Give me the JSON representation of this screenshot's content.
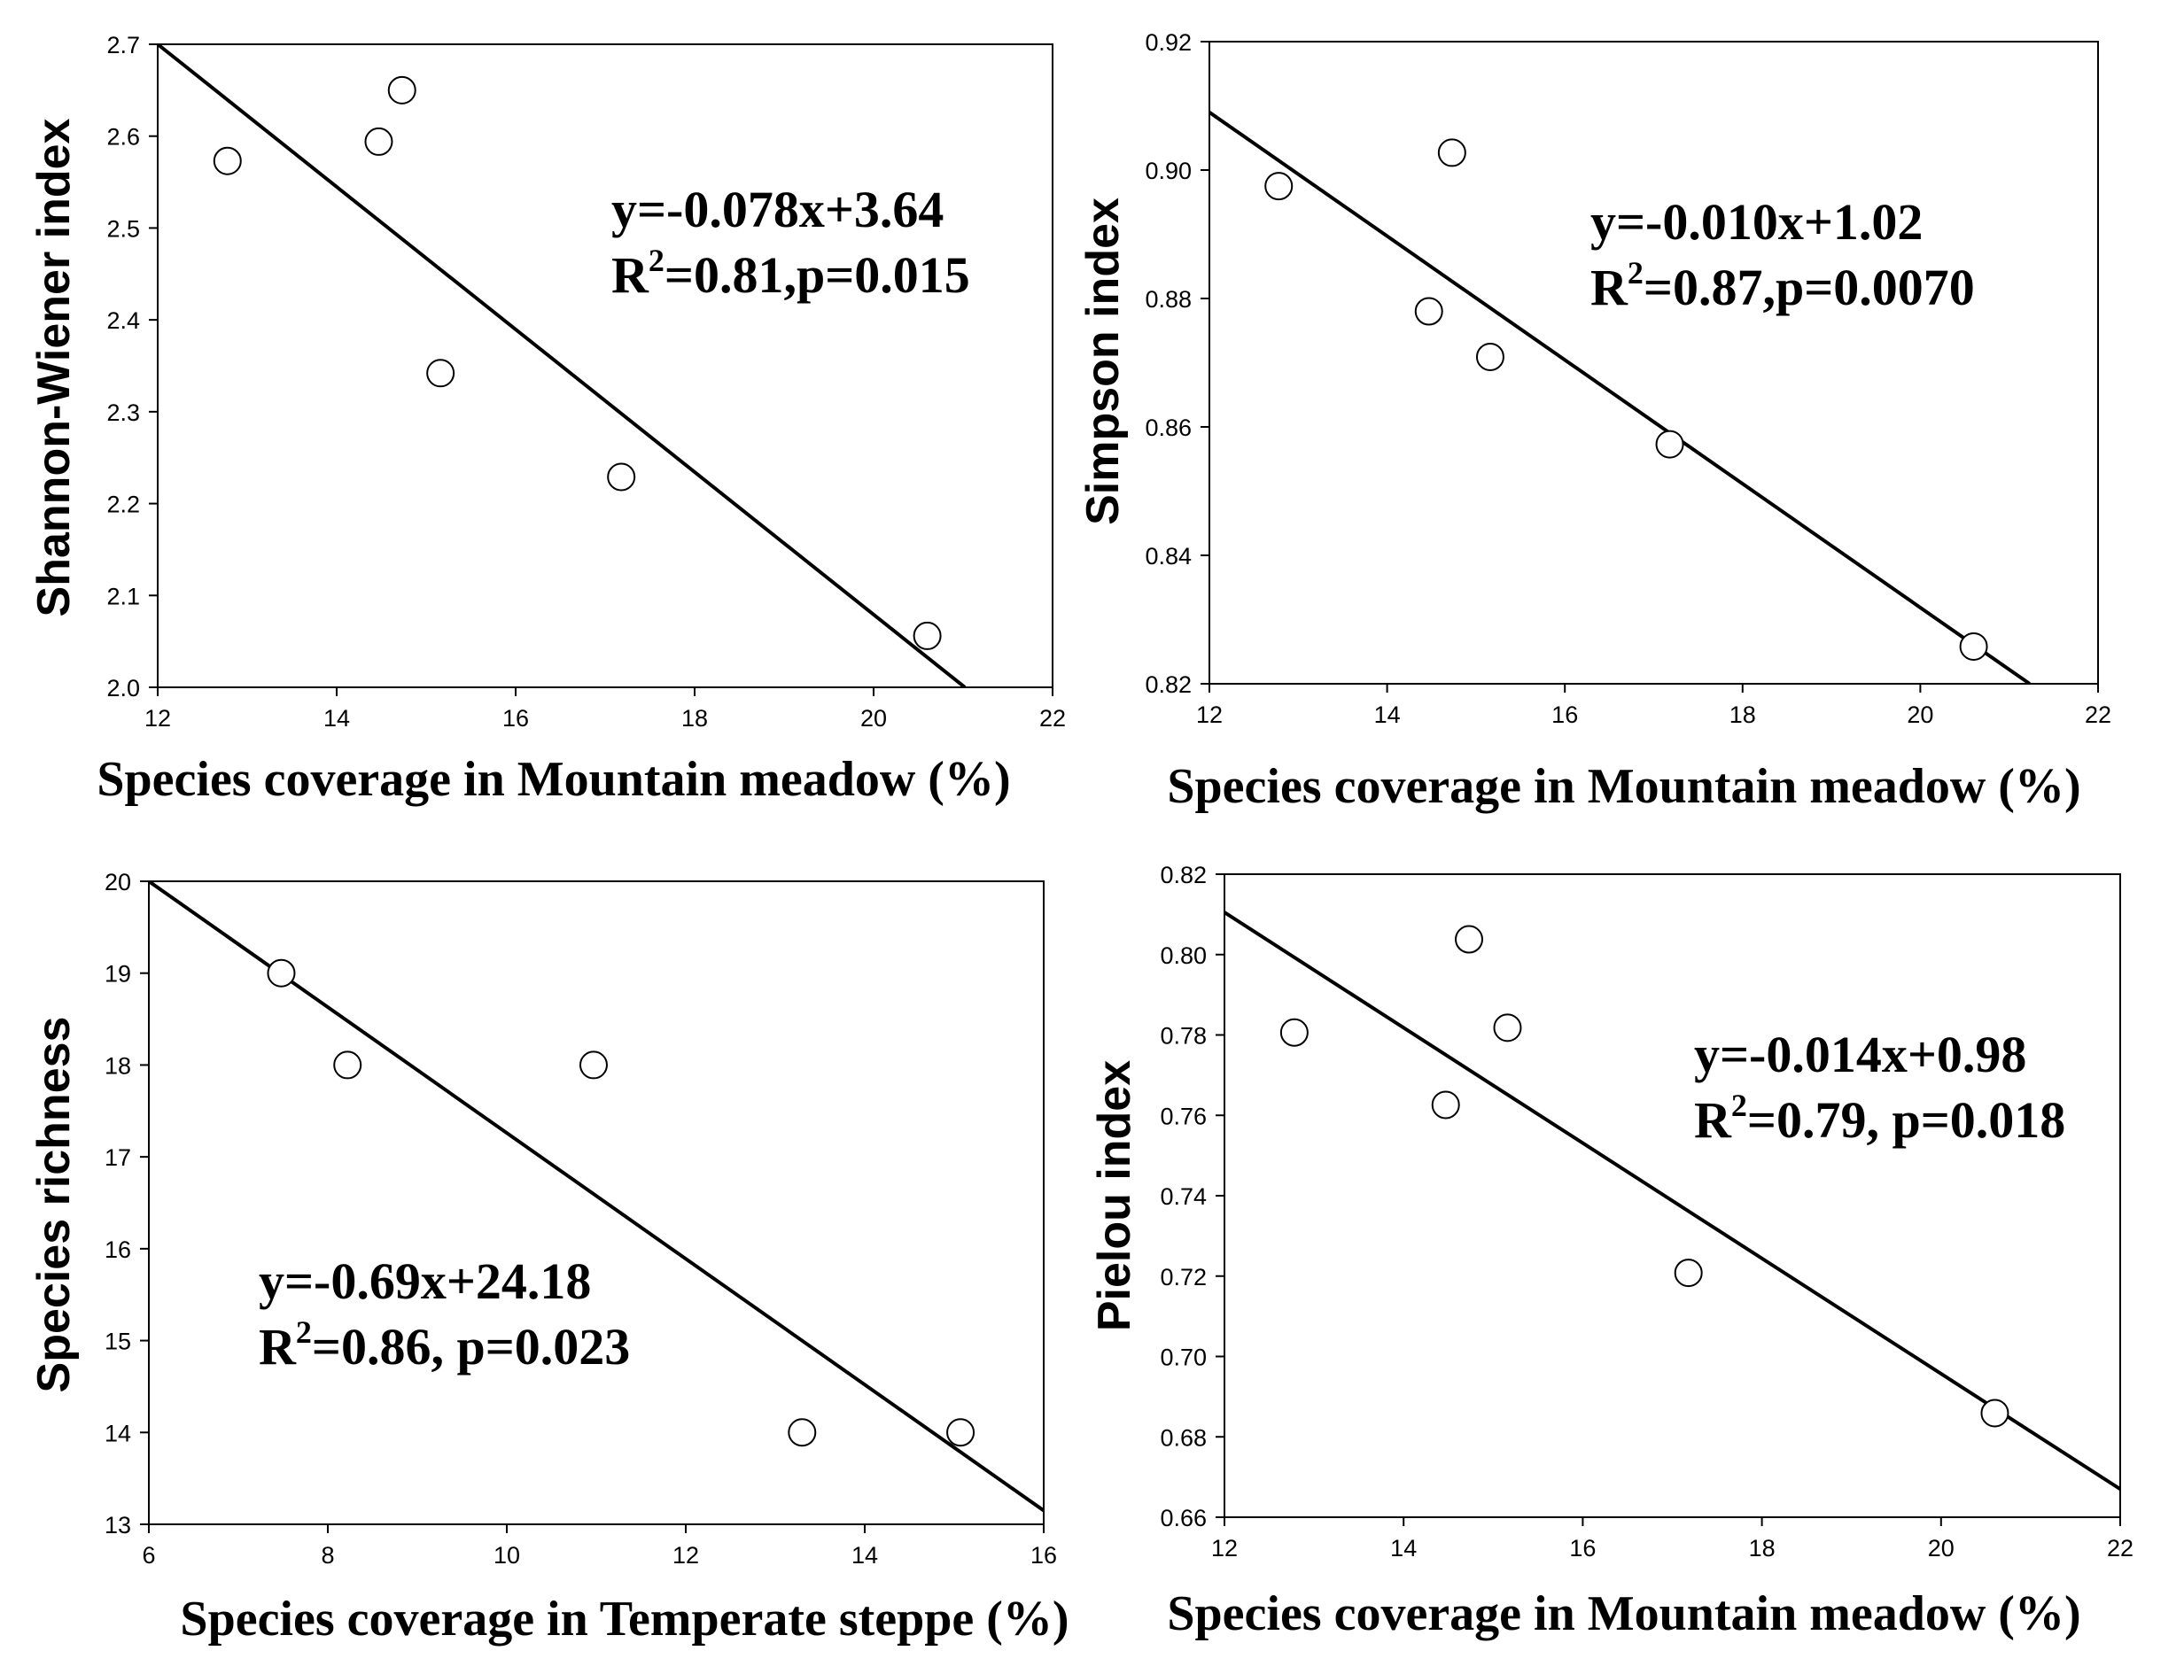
{
  "chart_data": [
    {
      "type": "scatter",
      "xlabel": "Species coverage in Mountain meadow (%)",
      "ylabel": "Shannon-Wiener index",
      "xlim": [
        12,
        22
      ],
      "ylim": [
        2.0,
        2.7
      ],
      "xticks": [
        12,
        14,
        16,
        18,
        20,
        22
      ],
      "yticks": [
        2.0,
        2.1,
        2.2,
        2.3,
        2.4,
        2.5,
        2.6,
        2.7
      ],
      "xtick_labels": [
        "12",
        "14",
        "16",
        "18",
        "20",
        "22"
      ],
      "ytick_labels": [
        "2.0",
        "2.1",
        "2.2",
        "2.3",
        "2.4",
        "2.5",
        "2.6",
        "2.7"
      ],
      "points": [
        {
          "x": 12.78,
          "y": 2.573
        },
        {
          "x": 14.47,
          "y": 2.594
        },
        {
          "x": 14.73,
          "y": 2.65
        },
        {
          "x": 15.16,
          "y": 2.342
        },
        {
          "x": 17.18,
          "y": 2.229
        },
        {
          "x": 20.6,
          "y": 2.056
        }
      ],
      "fit_line": {
        "x0": 12,
        "y0": 2.7,
        "x1": 21.02,
        "y1": 2.0
      },
      "equation": "y=-0.078x+3.64",
      "r2_prefix": "R",
      "r2_sup": "2",
      "r2_rest": "=0.81,p=0.015"
    },
    {
      "type": "scatter",
      "xlabel": "Species coverage in Mountain meadow (%)",
      "ylabel": "Simpson index",
      "xlim": [
        12,
        22
      ],
      "ylim": [
        0.82,
        0.92
      ],
      "xticks": [
        12,
        14,
        16,
        18,
        20,
        22
      ],
      "yticks": [
        0.82,
        0.84,
        0.86,
        0.88,
        0.9,
        0.92
      ],
      "xtick_labels": [
        "12",
        "14",
        "16",
        "18",
        "20",
        "22"
      ],
      "ytick_labels": [
        "0.82",
        "0.84",
        "0.86",
        "0.88",
        "0.90",
        "0.92"
      ],
      "points": [
        {
          "x": 12.78,
          "y": 0.8975
        },
        {
          "x": 14.47,
          "y": 0.878
        },
        {
          "x": 14.73,
          "y": 0.9027
        },
        {
          "x": 15.16,
          "y": 0.8709
        },
        {
          "x": 17.18,
          "y": 0.8573
        },
        {
          "x": 20.6,
          "y": 0.8258
        }
      ],
      "fit_line": {
        "x0": 12,
        "y0": 0.909,
        "x1": 21.23,
        "y1": 0.82
      },
      "equation": "y=-0.010x+1.02",
      "r2_prefix": "R",
      "r2_sup": "2",
      "r2_rest": "=0.87,p=0.0070"
    },
    {
      "type": "scatter",
      "xlabel": "Species coverage in Temperate steppe (%)",
      "ylabel": "Species richness",
      "xlim": [
        6,
        16
      ],
      "ylim": [
        13,
        20
      ],
      "xticks": [
        6,
        8,
        10,
        12,
        14,
        16
      ],
      "yticks": [
        13,
        14,
        15,
        16,
        17,
        18,
        19,
        20
      ],
      "xtick_labels": [
        "6",
        "8",
        "10",
        "12",
        "14",
        "16"
      ],
      "ytick_labels": [
        "13",
        "14",
        "15",
        "16",
        "17",
        "18",
        "19",
        "20"
      ],
      "points": [
        {
          "x": 7.48,
          "y": 19
        },
        {
          "x": 8.22,
          "y": 18
        },
        {
          "x": 10.97,
          "y": 18
        },
        {
          "x": 13.3,
          "y": 14
        },
        {
          "x": 15.07,
          "y": 14
        }
      ],
      "fit_line": {
        "x0": 6,
        "y0": 20,
        "x1": 16,
        "y1": 13.15
      },
      "equation": "y=-0.69x+24.18",
      "r2_prefix": "R",
      "r2_sup": "2",
      "r2_rest": "=0.86, p=0.023"
    },
    {
      "type": "scatter",
      "xlabel": "Species coverage in Mountain meadow (%)",
      "ylabel": "Pielou index",
      "xlim": [
        12,
        22
      ],
      "ylim": [
        0.66,
        0.82
      ],
      "xticks": [
        12,
        14,
        16,
        18,
        20,
        22
      ],
      "yticks": [
        0.66,
        0.68,
        0.7,
        0.72,
        0.74,
        0.76,
        0.78,
        0.8,
        0.82
      ],
      "xtick_labels": [
        "12",
        "14",
        "16",
        "18",
        "20",
        "22"
      ],
      "ytick_labels": [
        "0.66",
        "0.68",
        "0.70",
        "0.72",
        "0.74",
        "0.76",
        "0.78",
        "0.80",
        "0.82"
      ],
      "points": [
        {
          "x": 12.78,
          "y": 0.7806
        },
        {
          "x": 14.47,
          "y": 0.7626
        },
        {
          "x": 14.73,
          "y": 0.8038
        },
        {
          "x": 15.16,
          "y": 0.7818
        },
        {
          "x": 17.18,
          "y": 0.7208
        },
        {
          "x": 20.6,
          "y": 0.6859
        }
      ],
      "fit_line": {
        "x0": 12,
        "y0": 0.8105,
        "x1": 22,
        "y1": 0.667
      },
      "equation": "y=-0.014x+0.98",
      "r2_prefix": "R",
      "r2_sup": "2",
      "r2_rest": "=0.79, p=0.018"
    }
  ]
}
